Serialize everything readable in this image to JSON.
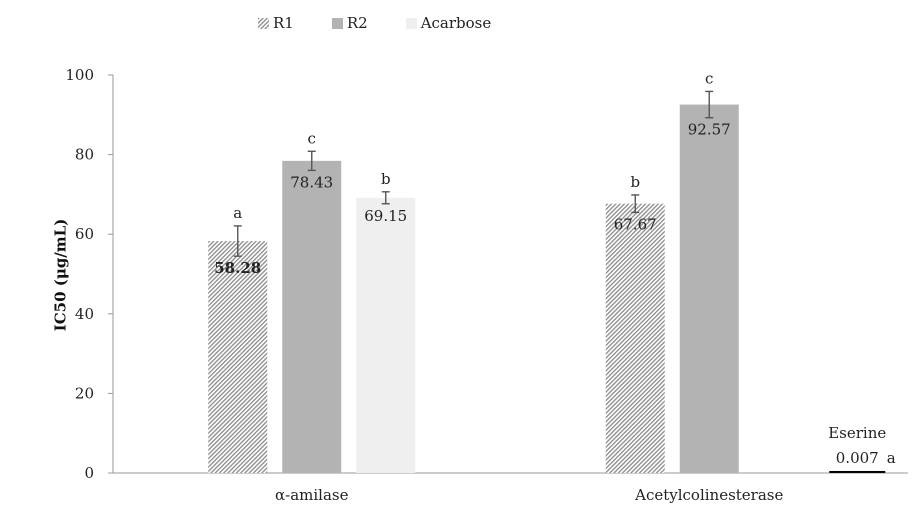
{
  "chart_data": {
    "type": "bar",
    "ylabel": "IC50 (μg/mL)",
    "ylim": [
      0,
      100
    ],
    "yticks": [
      0,
      20,
      40,
      60,
      80,
      100
    ],
    "grid": false,
    "legend_position": "top",
    "categories": [
      "α-amilase",
      "Acetylcolinesterase"
    ],
    "series": [
      {
        "name": "R1",
        "pattern": "hatched",
        "color": "#9a9a9a",
        "values": [
          58.28,
          67.67
        ],
        "errors": [
          3.8,
          2.2
        ],
        "labels": [
          "58.28",
          "67.67"
        ],
        "letters": [
          "a",
          "b"
        ]
      },
      {
        "name": "R2",
        "pattern": "solid",
        "color": "#b3b3b3",
        "values": [
          78.43,
          92.57
        ],
        "errors": [
          2.4,
          3.3
        ],
        "labels": [
          "78.43",
          "92.57"
        ],
        "letters": [
          "c",
          "c"
        ]
      },
      {
        "name": "Acarbose",
        "pattern": "solid",
        "color": "#efefef",
        "values": [
          69.15,
          null
        ],
        "errors": [
          1.5,
          null
        ],
        "labels": [
          "69.15",
          ""
        ],
        "letters": [
          "b",
          ""
        ]
      }
    ],
    "annotations": [
      {
        "category": "Acetylcolinesterase",
        "name": "Eserine",
        "value": 0.007,
        "label": "0.007",
        "letter": "a",
        "color": "#000000"
      }
    ]
  }
}
